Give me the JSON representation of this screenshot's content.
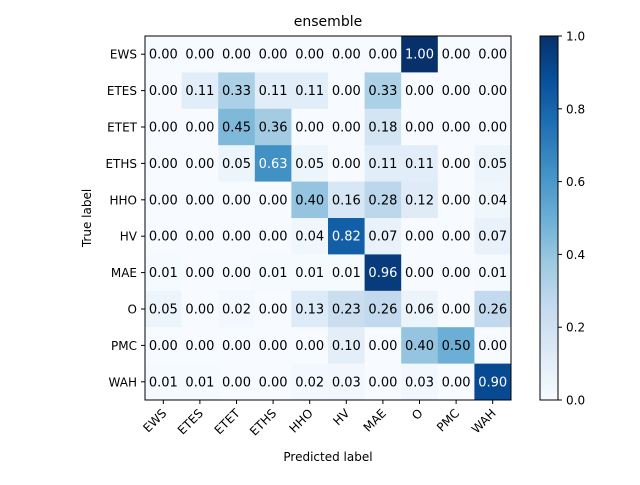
{
  "chart_data": {
    "type": "heatmap",
    "title": "ensemble",
    "xlabel": "Predicted label",
    "ylabel": "True label",
    "x_categories": [
      "EWS",
      "ETES",
      "ETET",
      "ETHS",
      "HHO",
      "HV",
      "MAE",
      "O",
      "PMC",
      "WAH"
    ],
    "y_categories": [
      "EWS",
      "ETES",
      "ETET",
      "ETHS",
      "HHO",
      "HV",
      "MAE",
      "O",
      "PMC",
      "WAH"
    ],
    "values": [
      [
        0.0,
        0.0,
        0.0,
        0.0,
        0.0,
        0.0,
        0.0,
        1.0,
        0.0,
        0.0
      ],
      [
        0.0,
        0.11,
        0.33,
        0.11,
        0.11,
        0.0,
        0.33,
        0.0,
        0.0,
        0.0
      ],
      [
        0.0,
        0.0,
        0.45,
        0.36,
        0.0,
        0.0,
        0.18,
        0.0,
        0.0,
        0.0
      ],
      [
        0.0,
        0.0,
        0.05,
        0.63,
        0.05,
        0.0,
        0.11,
        0.11,
        0.0,
        0.05
      ],
      [
        0.0,
        0.0,
        0.0,
        0.0,
        0.4,
        0.16,
        0.28,
        0.12,
        0.0,
        0.04
      ],
      [
        0.0,
        0.0,
        0.0,
        0.0,
        0.04,
        0.82,
        0.07,
        0.0,
        0.0,
        0.07
      ],
      [
        0.01,
        0.0,
        0.0,
        0.01,
        0.01,
        0.01,
        0.96,
        0.0,
        0.0,
        0.01
      ],
      [
        0.05,
        0.0,
        0.02,
        0.0,
        0.13,
        0.23,
        0.26,
        0.06,
        0.0,
        0.26
      ],
      [
        0.0,
        0.0,
        0.0,
        0.0,
        0.0,
        0.1,
        0.0,
        0.4,
        0.5,
        0.0
      ],
      [
        0.01,
        0.01,
        0.0,
        0.0,
        0.02,
        0.03,
        0.0,
        0.03,
        0.0,
        0.9
      ]
    ],
    "colorbar": {
      "range": [
        0.0,
        1.0
      ],
      "ticks": [
        "0.0",
        "0.2",
        "0.4",
        "0.6",
        "0.8",
        "1.0"
      ],
      "colormap": "Blues"
    },
    "grid": false,
    "value_format": "2 decimals",
    "colors": {
      "low": "#f7fbff",
      "high": "#08306b",
      "text_dark": "#000000",
      "text_light": "#ffffff"
    }
  }
}
